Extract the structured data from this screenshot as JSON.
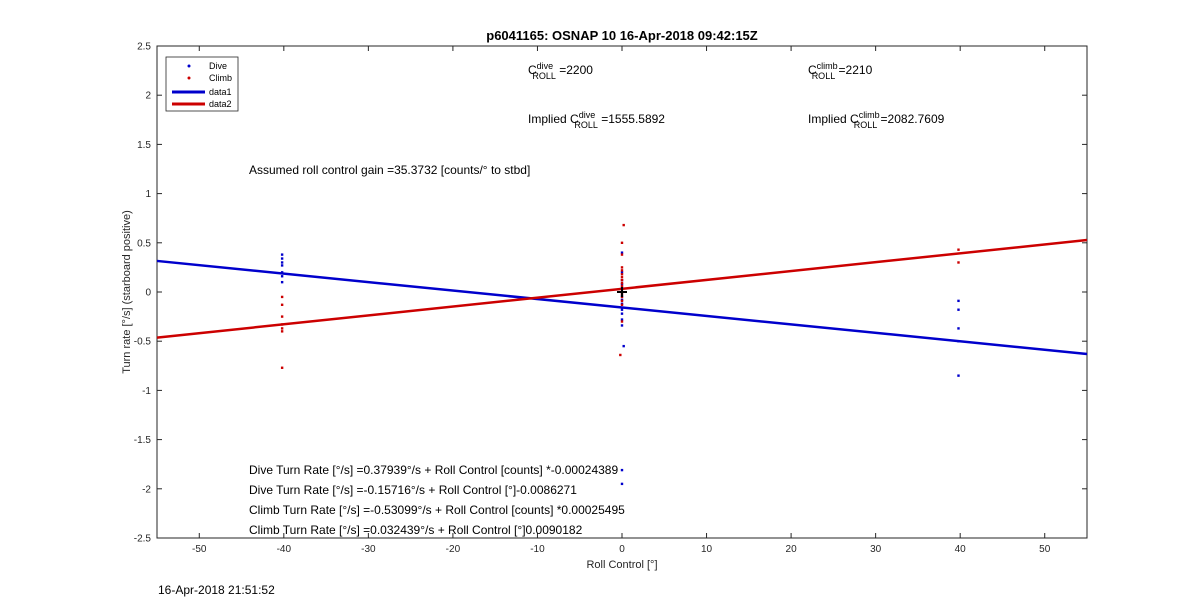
{
  "timestamp": "16-Apr-2018 21:51:52",
  "chart_data": {
    "type": "scatter",
    "title": "p6041165: OSNAP 10 16-Apr-2018 09:42:15Z",
    "xlabel": "Roll Control [°]",
    "ylabel": "Turn rate [°/s] (starboard positive)",
    "xlim": [
      -55,
      55
    ],
    "ylim": [
      -2.5,
      2.5
    ],
    "xticks": [
      -50,
      -40,
      -30,
      -20,
      -10,
      0,
      10,
      20,
      30,
      40,
      50
    ],
    "yticks": [
      -2.5,
      -2,
      -1.5,
      -1,
      -0.5,
      0,
      0.5,
      1,
      1.5,
      2,
      2.5
    ],
    "grid": false,
    "legend_position": "top-left",
    "legend": [
      "Dive",
      "Climb",
      "data1",
      "data2"
    ],
    "colors": {
      "dive": "#0000cc",
      "climb": "#cc0000",
      "marker": "#000000"
    },
    "series": [
      {
        "name": "Dive",
        "type": "scatter",
        "color": "#0000cc",
        "points": [
          [
            -40.2,
            0.38
          ],
          [
            -40.2,
            0.34
          ],
          [
            -40.2,
            0.3
          ],
          [
            -40.2,
            0.27
          ],
          [
            -40.2,
            0.2
          ],
          [
            -40.2,
            0.16
          ],
          [
            -40.2,
            0.1
          ],
          [
            0,
            0.4
          ],
          [
            0,
            0.2
          ],
          [
            0,
            0.12
          ],
          [
            0,
            0.08
          ],
          [
            0,
            0.04
          ],
          [
            0,
            0.0
          ],
          [
            0,
            -0.04
          ],
          [
            0,
            -0.08
          ],
          [
            0,
            -0.12
          ],
          [
            0,
            -0.18
          ],
          [
            0,
            -0.22
          ],
          [
            0,
            -0.28
          ],
          [
            0,
            -0.34
          ],
          [
            0.2,
            -0.55
          ],
          [
            0,
            -1.81
          ],
          [
            0,
            -1.95
          ],
          [
            39.8,
            -0.09
          ],
          [
            39.8,
            -0.18
          ],
          [
            39.8,
            -0.37
          ],
          [
            39.8,
            -0.5
          ],
          [
            39.8,
            -0.85
          ]
        ]
      },
      {
        "name": "Climb",
        "type": "scatter",
        "color": "#cc0000",
        "points": [
          [
            -40.2,
            -0.05
          ],
          [
            -40.2,
            -0.13
          ],
          [
            -40.2,
            -0.25
          ],
          [
            -40.2,
            -0.33
          ],
          [
            -40.2,
            -0.37
          ],
          [
            -40.2,
            -0.4
          ],
          [
            -40.2,
            -0.77
          ],
          [
            0.2,
            0.68
          ],
          [
            0,
            0.5
          ],
          [
            0,
            0.38
          ],
          [
            0,
            0.25
          ],
          [
            0,
            0.22
          ],
          [
            0,
            0.18
          ],
          [
            0,
            0.15
          ],
          [
            0,
            0.12
          ],
          [
            0,
            0.09
          ],
          [
            0,
            0.06
          ],
          [
            0,
            0.03
          ],
          [
            0,
            -0.02
          ],
          [
            0,
            -0.05
          ],
          [
            0,
            -0.09
          ],
          [
            0,
            -0.13
          ],
          [
            0,
            -0.3
          ],
          [
            -0.2,
            -0.64
          ],
          [
            39.8,
            0.43
          ],
          [
            39.8,
            0.3
          ]
        ]
      },
      {
        "name": "data1",
        "type": "line",
        "color": "#0000cc",
        "x": [
          -55,
          55
        ],
        "y": [
          0.3157,
          -0.63
        ]
      },
      {
        "name": "data2",
        "type": "line",
        "color": "#cc0000",
        "x": [
          -55,
          55
        ],
        "y": [
          -0.4635,
          0.5284
        ]
      }
    ],
    "center_marker": [
      0,
      0
    ],
    "annotations": {
      "c_dive": {
        "pre": "C",
        "sup": "dive",
        "sub": "ROLL",
        "post": " =2200"
      },
      "c_climb": {
        "pre": "C",
        "sup": "climb",
        "sub": "ROLL",
        "post": " =2210"
      },
      "implied_dive": {
        "pre": "Implied C",
        "sup": "dive",
        "sub": "ROLL",
        "post": " =1555.5892"
      },
      "implied_climb": {
        "pre": "Implied C",
        "sup": "climb",
        "sub": "ROLL",
        "post": " =2082.7609"
      },
      "gain": "Assumed roll control gain =35.3732 [counts/° to stbd]",
      "eq1": "Dive Turn Rate [°/s] =0.37939°/s + Roll Control [counts] *-0.00024389",
      "eq2": "Dive Turn Rate [°/s] =-0.15716°/s + Roll Control [°]-0.0086271",
      "eq3": "Climb Turn Rate [°/s] =-0.53099°/s + Roll Control [counts] *0.00025495",
      "eq4": "Climb Turn Rate [°/s] =0.032439°/s + Roll Control [°]0.0090182"
    }
  }
}
